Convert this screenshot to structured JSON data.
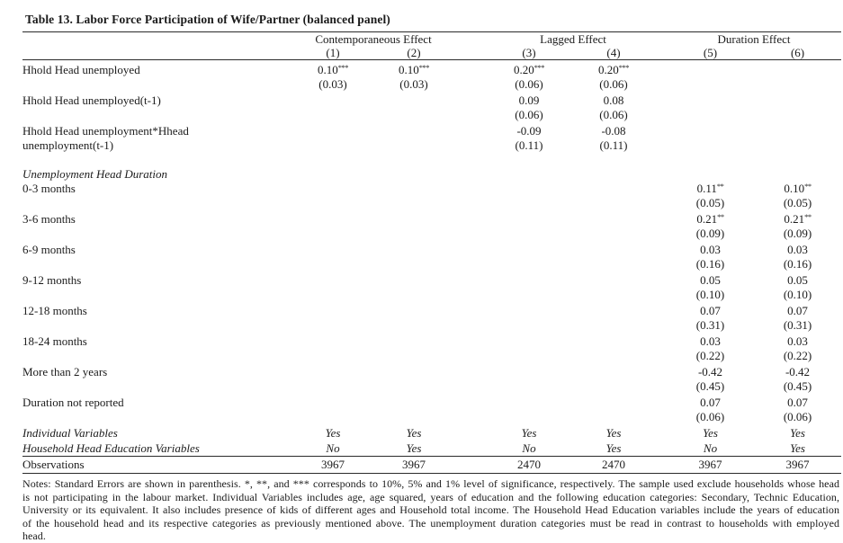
{
  "title": "Table 13. Labor Force Participation of Wife/Partner (balanced panel)",
  "header": {
    "groups": [
      {
        "label": "Contemporaneous Effect",
        "cols": [
          "(1)",
          "(2)"
        ]
      },
      {
        "label": "Lagged Effect",
        "cols": [
          "(3)",
          "(4)"
        ]
      },
      {
        "label": "Duration Effect",
        "cols": [
          "(5)",
          "(6)"
        ]
      }
    ]
  },
  "rows": [
    {
      "type": "coef",
      "label": "Hhold Head unemployed",
      "label2": "",
      "indent": 0,
      "coef": [
        "0.10***",
        "0.10***",
        "0.20***",
        "0.20***",
        "",
        ""
      ],
      "se": [
        "(0.03)",
        "(0.03)",
        "(0.06)",
        "(0.06)",
        "",
        ""
      ]
    },
    {
      "type": "coef",
      "label": "Hhold Head unemployed(t-1)",
      "label2": "",
      "indent": 0,
      "coef": [
        "",
        "",
        "0.09",
        "0.08",
        "",
        ""
      ],
      "se": [
        "",
        "",
        "(0.06)",
        "(0.06)",
        "",
        ""
      ]
    },
    {
      "type": "coef",
      "label": "Hhold Head unemployment*Hhead",
      "label2": "unemployment(t-1)",
      "indent": 0,
      "coef": [
        "",
        "",
        "-0.09",
        "-0.08",
        "",
        ""
      ],
      "se": [
        "",
        "",
        "(0.11)",
        "(0.11)",
        "",
        ""
      ]
    },
    {
      "type": "spacer"
    },
    {
      "type": "section",
      "label": "Unemployment Head Duration"
    },
    {
      "type": "coef",
      "label": "0-3 months",
      "label2": "",
      "indent": 1,
      "coef": [
        "",
        "",
        "",
        "",
        "0.11**",
        "0.10**"
      ],
      "se": [
        "",
        "",
        "",
        "",
        "(0.05)",
        "(0.05)"
      ]
    },
    {
      "type": "coef",
      "label": "3-6 months",
      "label2": "",
      "indent": 1,
      "coef": [
        "",
        "",
        "",
        "",
        "0.21**",
        "0.21**"
      ],
      "se": [
        "",
        "",
        "",
        "",
        "(0.09)",
        "(0.09)"
      ]
    },
    {
      "type": "coef",
      "label": "6-9 months",
      "label2": "",
      "indent": 1,
      "coef": [
        "",
        "",
        "",
        "",
        "0.03",
        "0.03"
      ],
      "se": [
        "",
        "",
        "",
        "",
        "(0.16)",
        "(0.16)"
      ]
    },
    {
      "type": "coef",
      "label": "9-12 months",
      "label2": "",
      "indent": 1,
      "coef": [
        "",
        "",
        "",
        "",
        "0.05",
        "0.05"
      ],
      "se": [
        "",
        "",
        "",
        "",
        "(0.10)",
        "(0.10)"
      ]
    },
    {
      "type": "coef",
      "label": "12-18 months",
      "label2": "",
      "indent": 1,
      "coef": [
        "",
        "",
        "",
        "",
        "0.07",
        "0.07"
      ],
      "se": [
        "",
        "",
        "",
        "",
        "(0.31)",
        "(0.31)"
      ]
    },
    {
      "type": "coef",
      "label": "18-24 months",
      "label2": "",
      "indent": 1,
      "coef": [
        "",
        "",
        "",
        "",
        "0.03",
        "0.03"
      ],
      "se": [
        "",
        "",
        "",
        "",
        "(0.22)",
        "(0.22)"
      ]
    },
    {
      "type": "coef",
      "label": "More than 2 years",
      "label2": "",
      "indent": 1,
      "coef": [
        "",
        "",
        "",
        "",
        "-0.42",
        "-0.42"
      ],
      "se": [
        "",
        "",
        "",
        "",
        "(0.45)",
        "(0.45)"
      ]
    },
    {
      "type": "coef",
      "label": "Duration not reported",
      "label2": "",
      "indent": 1,
      "coef": [
        "",
        "",
        "",
        "",
        "0.07",
        "0.07"
      ],
      "se": [
        "",
        "",
        "",
        "",
        "(0.06)",
        "(0.06)"
      ]
    },
    {
      "type": "info",
      "label": "Individual Variables",
      "values": [
        "Yes",
        "Yes",
        "Yes",
        "Yes",
        "Yes",
        "Yes"
      ]
    },
    {
      "type": "info",
      "label": "Household Head Education Variables",
      "values": [
        "No",
        "Yes",
        "No",
        "Yes",
        "No",
        "Yes"
      ]
    },
    {
      "type": "obs",
      "label": "Observations",
      "values": [
        "3967",
        "3967",
        "2470",
        "2470",
        "3967",
        "3967"
      ]
    }
  ],
  "notes": "Notes: Standard Errors are shown in parenthesis. *, **, and *** corresponds to 10%, 5% and 1% level of significance, respectively. The sample used exclude households whose head is not participating in the labour market. Individual Variables includes age, age squared, years of education and the following education categories: Secondary, Technic Education, University or its equivalent. It also includes presence of kids of different ages and Household total income. The Household Head Education variables include the years of education of the household head and its respective categories as previously mentioned above. The unemployment duration categories must be read in contrast to households with employed head."
}
